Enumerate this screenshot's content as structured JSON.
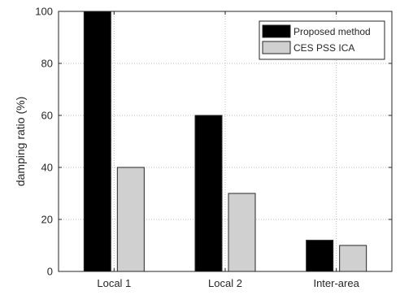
{
  "chart_data": {
    "type": "bar",
    "categories": [
      "Local 1",
      "Local 2",
      "Inter-area"
    ],
    "series": [
      {
        "name": "Proposed method",
        "values": [
          100,
          60,
          12
        ],
        "color": "#000000"
      },
      {
        "name": "CES PSS ICA",
        "values": [
          40,
          30,
          10
        ],
        "color": "#d0d0d0"
      }
    ],
    "title": "",
    "xlabel": "",
    "ylabel": "damping ratio (%)",
    "ylim": [
      0,
      100
    ],
    "yticks": [
      0,
      20,
      40,
      60,
      80,
      100
    ],
    "grid": true,
    "legend_position": "top-right"
  }
}
